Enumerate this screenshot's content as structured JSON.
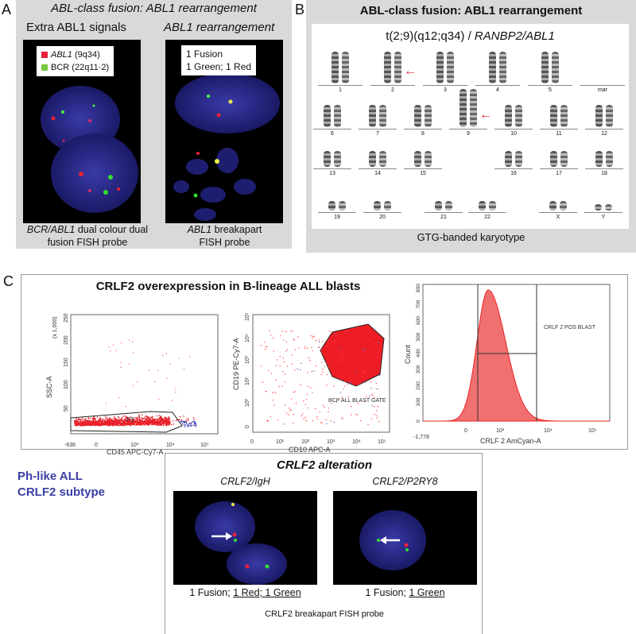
{
  "panelA": {
    "letter": "A",
    "title": "ABL-class fusion: ABL1 rearrangement",
    "left_heading": "Extra ABL1 signals",
    "right_heading": "ABL1 rearrangement",
    "legend": [
      {
        "gene": "ABL1",
        "loc": "(9q34)",
        "color": "#e8203a"
      },
      {
        "gene": "BCR",
        "loc": "(22q11·2)",
        "color": "#7ac943"
      }
    ],
    "right_box": [
      "1 Fusion",
      "1 Green; 1 Red"
    ],
    "left_caption": {
      "italic": "BCR/ABL1",
      "text": " dual colour dual",
      "line2": "fusion FISH probe"
    },
    "right_caption": {
      "italic": "ABL1",
      "text": " breakapart",
      "line2": "FISH probe"
    }
  },
  "panelB": {
    "letter": "B",
    "title": "ABL-class fusion: ABL1 rearrangement",
    "subtitle_plain": "t(2;9)(q12;q34) / ",
    "subtitle_italic": "RANBP2/ABL1",
    "chromosomes": [
      "1",
      "2",
      "3",
      "4",
      "5",
      "mar",
      "6",
      "7",
      "8",
      "9",
      "10",
      "11",
      "12",
      "13",
      "14",
      "15",
      "16",
      "17",
      "18",
      "19",
      "20",
      "21",
      "22",
      "X",
      "Y"
    ],
    "caption": "GTG-banded karyotype"
  },
  "panelC": {
    "letter": "C",
    "title": "CRLF2 overexpression in B-lineage ALL blasts",
    "plot1": {
      "ylabel": "SSC-A",
      "yscale": "(x 1,000)",
      "yticks": [
        "250",
        "200",
        "150",
        "100",
        "50"
      ],
      "xticks": [
        "-636",
        "0",
        "10³",
        "10⁴",
        "10⁵"
      ],
      "xlabel": "CD45 APC-Cy7-A",
      "gate": "P2"
    },
    "plot2": {
      "ylabel": "CD19 PE-Cy7-A",
      "yticks": [
        "10⁵",
        "10⁴",
        "10³",
        "10²",
        "10¹",
        "0"
      ],
      "xticks": [
        "0",
        "10¹",
        "10²",
        "10³",
        "10⁴",
        "10⁵"
      ],
      "xlabel": "CD10 APC-A",
      "gate": "BCP ALL BLAST GATE"
    },
    "plot3": {
      "ylabel": "Count",
      "yticks": [
        "800",
        "700",
        "600",
        "500",
        "400",
        "300",
        "200",
        "100",
        "0"
      ],
      "xticks": [
        "-1,778",
        "0",
        "10³",
        "10⁴",
        "10⁵"
      ],
      "xlabel": "CRLF 2 AmCyan-A",
      "gate": "CRLF 2 POS BLAST"
    }
  },
  "side": {
    "line1": "Ph-like ALL",
    "line2": "CRLF2 subtype",
    "color": "#3b3fa3"
  },
  "bottom": {
    "title": "CRLF2 alteration",
    "left_heading": "CRLF2/IgH",
    "right_heading": "CRLF2/P2RY8",
    "left_caption": {
      "a": "1 Fusion; ",
      "b": "1 Red; 1 Green"
    },
    "right_caption": {
      "a": "1 Fusion; ",
      "b": "1 Green"
    },
    "footer": "CRLF2 breakapart FISH probe"
  }
}
